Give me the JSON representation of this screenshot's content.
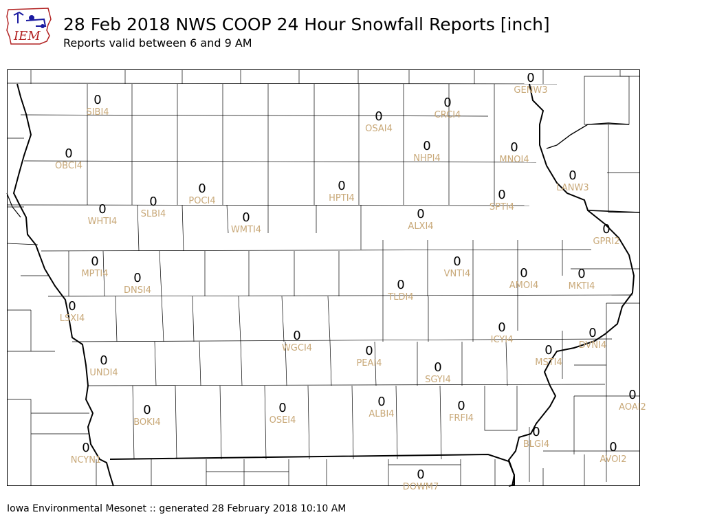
{
  "logo": {
    "text": "IEM",
    "accent": "#b22222",
    "icon": "iowa-state-logo"
  },
  "header": {
    "title": "28 Feb 2018 NWS COOP 24 Hour Snowfall Reports [inch]",
    "subtitle": "Reports valid between 6 and 9 AM"
  },
  "footer": {
    "text": "Iowa Environmental Mesonet :: generated 28 February 2018 10:10 AM"
  },
  "colors": {
    "station_label": "#c8a878",
    "border": "#000000",
    "background": "#ffffff"
  },
  "stations": [
    {
      "id": "SIBI4",
      "value": "0"
    },
    {
      "id": "OSAI4",
      "value": "0"
    },
    {
      "id": "CRCI4",
      "value": "0"
    },
    {
      "id": "GENW3",
      "value": "0"
    },
    {
      "id": "OBCI4",
      "value": "0"
    },
    {
      "id": "NHPI4",
      "value": "0"
    },
    {
      "id": "MNOI4",
      "value": "0"
    },
    {
      "id": "LANW3",
      "value": "0"
    },
    {
      "id": "POCI4",
      "value": "0"
    },
    {
      "id": "HPTI4",
      "value": "0"
    },
    {
      "id": "SPTI4",
      "value": "0"
    },
    {
      "id": "SLBI4",
      "value": "0"
    },
    {
      "id": "WHTI4",
      "value": "0"
    },
    {
      "id": "WMTI4",
      "value": "0"
    },
    {
      "id": "ALXI4",
      "value": "0"
    },
    {
      "id": "GPRI2",
      "value": "0"
    },
    {
      "id": "MPTI4",
      "value": "0"
    },
    {
      "id": "VNTI4",
      "value": "0"
    },
    {
      "id": "AMOI4",
      "value": "0"
    },
    {
      "id": "MKTI4",
      "value": "0"
    },
    {
      "id": "DNSI4",
      "value": "0"
    },
    {
      "id": "TLDI4",
      "value": "0"
    },
    {
      "id": "LSXI4",
      "value": "0"
    },
    {
      "id": "ICYI4",
      "value": "0"
    },
    {
      "id": "WGCI4",
      "value": "0"
    },
    {
      "id": "DVNI4",
      "value": "0"
    },
    {
      "id": "PEAI4",
      "value": "0"
    },
    {
      "id": "MSTI4",
      "value": "0"
    },
    {
      "id": "UNDI4",
      "value": "0"
    },
    {
      "id": "SGYI4",
      "value": "0"
    },
    {
      "id": "AOAI2",
      "value": "0"
    },
    {
      "id": "ALBI4",
      "value": "0"
    },
    {
      "id": "FRFI4",
      "value": "0"
    },
    {
      "id": "BOKI4",
      "value": "0"
    },
    {
      "id": "OSEI4",
      "value": "0"
    },
    {
      "id": "BLGI4",
      "value": "0"
    },
    {
      "id": "NCYN1",
      "value": "0"
    },
    {
      "id": "AVOI2",
      "value": "0"
    },
    {
      "id": "DOWM7",
      "value": "0"
    }
  ]
}
